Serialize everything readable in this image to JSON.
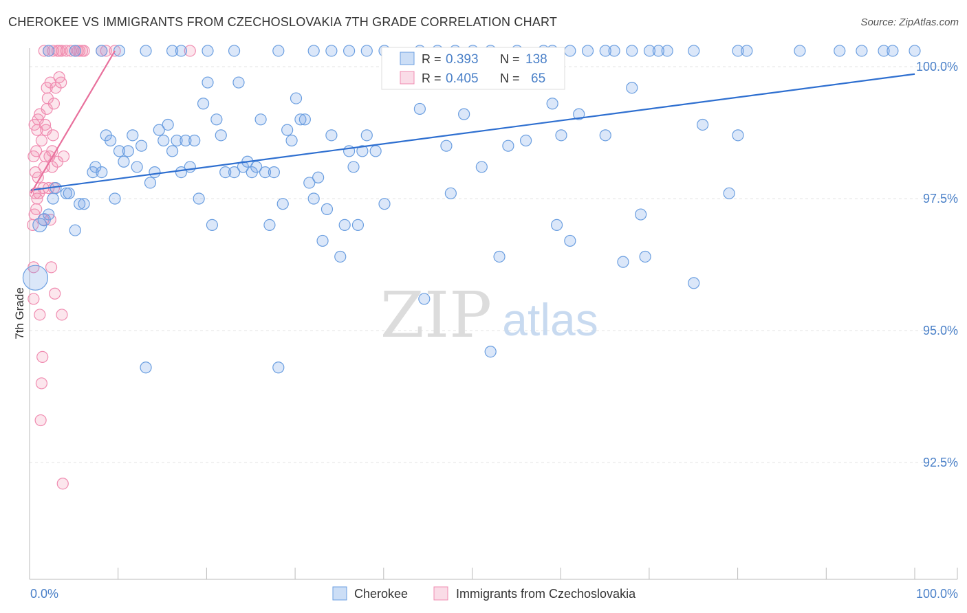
{
  "header": {
    "title": "CHEROKEE VS IMMIGRANTS FROM CZECHOSLOVAKIA 7TH GRADE CORRELATION CHART",
    "source": "Source: ZipAtlas.com"
  },
  "watermark": {
    "zip": "ZIP",
    "atlas": "atlas"
  },
  "colors": {
    "blue": "#6a9ee0",
    "blue_fill": "rgba(110,160,230,0.25)",
    "blue_line": "#2e6fd0",
    "pink": "#f08bb0",
    "pink_fill": "rgba(240,140,175,0.22)",
    "pink_line": "#e8709c",
    "tick_label": "#4a80c8",
    "grid": "#e3e3e3"
  },
  "chart_data": {
    "type": "scatter",
    "title": "CHEROKEE VS IMMIGRANTS FROM CZECHOSLOVAKIA 7TH GRADE CORRELATION CHART",
    "xlabel": "",
    "ylabel": "7th Grade",
    "xlim": [
      0,
      100
    ],
    "ylim": [
      90.0,
      100.4
    ],
    "x_tick_labels": {
      "left": "0.0%",
      "right": "100.0%"
    },
    "y_ticks": [
      {
        "value": 100.0,
        "label": "100.0%"
      },
      {
        "value": 97.5,
        "label": "97.5%"
      },
      {
        "value": 95.0,
        "label": "95.0%"
      },
      {
        "value": 92.5,
        "label": "92.5%"
      }
    ],
    "legend": {
      "position": "top-center",
      "rows": [
        {
          "r_label": "R =",
          "r_value": "0.393",
          "n_label": "N =",
          "n_value": "138"
        },
        {
          "r_label": "R =",
          "r_value": "0.405",
          "n_label": "N =",
          "n_value": "65"
        }
      ]
    },
    "bottom_legend": [
      "Cherokee",
      "Immigrants from Czechoslovakia"
    ],
    "series": [
      {
        "name": "Cherokee",
        "color": "#6a9ee0",
        "trend": {
          "x": [
            0,
            100
          ],
          "y": [
            97.66,
            99.86
          ]
        },
        "points": [
          [
            0.5,
            96.0,
            18
          ],
          [
            1,
            97.0,
            10
          ],
          [
            1.5,
            97.1,
            9
          ],
          [
            2,
            97.2,
            8
          ],
          [
            2.5,
            97.5,
            8
          ],
          [
            2.8,
            97.7,
            8
          ],
          [
            4,
            97.6,
            8
          ],
          [
            4.3,
            97.6,
            8
          ],
          [
            5,
            96.9,
            8
          ],
          [
            5.5,
            97.4,
            8
          ],
          [
            6,
            97.4,
            8
          ],
          [
            7,
            98.0,
            8
          ],
          [
            7.3,
            98.1,
            8
          ],
          [
            8,
            98.0,
            8
          ],
          [
            8.5,
            98.7,
            8
          ],
          [
            9,
            98.6,
            8
          ],
          [
            9.5,
            97.5,
            8
          ],
          [
            10,
            98.4,
            8
          ],
          [
            10.5,
            98.2,
            8
          ],
          [
            11,
            98.4,
            8
          ],
          [
            11.5,
            98.7,
            8
          ],
          [
            12,
            98.1,
            8
          ],
          [
            12.5,
            98.5,
            8
          ],
          [
            13,
            94.3,
            8
          ],
          [
            13.5,
            97.8,
            8
          ],
          [
            14,
            98.0,
            8
          ],
          [
            14.5,
            98.8,
            8
          ],
          [
            15,
            98.6,
            8
          ],
          [
            15.5,
            98.9,
            8
          ],
          [
            16,
            98.4,
            8
          ],
          [
            16.5,
            98.6,
            8
          ],
          [
            17,
            98.0,
            8
          ],
          [
            17.5,
            98.6,
            8
          ],
          [
            18,
            98.1,
            8
          ],
          [
            18.5,
            98.6,
            8
          ],
          [
            19,
            97.5,
            8
          ],
          [
            19.5,
            99.3,
            8
          ],
          [
            20,
            99.7,
            8
          ],
          [
            20.5,
            97.0,
            8
          ],
          [
            21,
            99.0,
            8
          ],
          [
            21.5,
            98.7,
            8
          ],
          [
            22,
            98.0,
            8
          ],
          [
            23,
            98.0,
            8
          ],
          [
            23.5,
            99.7,
            8
          ],
          [
            24,
            98.1,
            8
          ],
          [
            24.5,
            98.2,
            8
          ],
          [
            25,
            98.0,
            8
          ],
          [
            25.5,
            98.1,
            8
          ],
          [
            26,
            99.0,
            8
          ],
          [
            26.5,
            98.0,
            8
          ],
          [
            27,
            97.0,
            8
          ],
          [
            27.5,
            98.0,
            8
          ],
          [
            28,
            94.3,
            8
          ],
          [
            28.5,
            97.4,
            8
          ],
          [
            29,
            98.8,
            8
          ],
          [
            29.5,
            98.6,
            8
          ],
          [
            30,
            99.4,
            8
          ],
          [
            30.5,
            99.0,
            8
          ],
          [
            31,
            99.0,
            8
          ],
          [
            31.5,
            97.8,
            8
          ],
          [
            32,
            97.5,
            8
          ],
          [
            32.5,
            97.9,
            8
          ],
          [
            33,
            96.7,
            8
          ],
          [
            33.5,
            97.3,
            8
          ],
          [
            34,
            98.7,
            8
          ],
          [
            35,
            96.4,
            8
          ],
          [
            35.5,
            97.0,
            8
          ],
          [
            36,
            98.4,
            8
          ],
          [
            36.5,
            98.1,
            8
          ],
          [
            37,
            97.0,
            8
          ],
          [
            37.5,
            98.4,
            8
          ],
          [
            38,
            98.7,
            8
          ],
          [
            39,
            98.4,
            8
          ],
          [
            40,
            97.4,
            8
          ],
          [
            44,
            99.2,
            8
          ],
          [
            44.5,
            95.6,
            8
          ],
          [
            47,
            98.5,
            8
          ],
          [
            47.5,
            97.6,
            8
          ],
          [
            49,
            99.1,
            8
          ],
          [
            51,
            98.1,
            8
          ],
          [
            52,
            94.6,
            8
          ],
          [
            53,
            96.4,
            8
          ],
          [
            54,
            98.5,
            8
          ],
          [
            56,
            98.6,
            8
          ],
          [
            59,
            99.3,
            8
          ],
          [
            59.5,
            97.0,
            8
          ],
          [
            60,
            98.7,
            8
          ],
          [
            61,
            96.7,
            8
          ],
          [
            62,
            99.1,
            8
          ],
          [
            65,
            98.7,
            8
          ],
          [
            67,
            96.3,
            8
          ],
          [
            68,
            99.6,
            8
          ],
          [
            69,
            97.2,
            8
          ],
          [
            69.5,
            96.4,
            8
          ],
          [
            75,
            95.9,
            8
          ],
          [
            76,
            98.9,
            8
          ],
          [
            79,
            97.6,
            8
          ],
          [
            80,
            98.7,
            8
          ],
          [
            2,
            100.3,
            8
          ],
          [
            5,
            100.3,
            8
          ],
          [
            8,
            100.3,
            8
          ],
          [
            10,
            100.3,
            8
          ],
          [
            13,
            100.3,
            8
          ],
          [
            16,
            100.3,
            8
          ],
          [
            17,
            100.3,
            8
          ],
          [
            20,
            100.3,
            8
          ],
          [
            23,
            100.3,
            8
          ],
          [
            28,
            100.3,
            8
          ],
          [
            32,
            100.3,
            8
          ],
          [
            34,
            100.3,
            8
          ],
          [
            36,
            100.3,
            8
          ],
          [
            38,
            100.3,
            8
          ],
          [
            40,
            100.3,
            8
          ],
          [
            44,
            100.3,
            8
          ],
          [
            46,
            100.3,
            8
          ],
          [
            48,
            100.3,
            8
          ],
          [
            50,
            100.3,
            8
          ],
          [
            52,
            100.3,
            8
          ],
          [
            55,
            100.3,
            8
          ],
          [
            58,
            100.3,
            8
          ],
          [
            59,
            100.3,
            8
          ],
          [
            61,
            100.3,
            8
          ],
          [
            63,
            100.3,
            8
          ],
          [
            65,
            100.3,
            8
          ],
          [
            66,
            100.3,
            8
          ],
          [
            68,
            100.3,
            8
          ],
          [
            70,
            100.3,
            8
          ],
          [
            71,
            100.3,
            8
          ],
          [
            72,
            100.3,
            8
          ],
          [
            75,
            100.3,
            8
          ],
          [
            80,
            100.3,
            8
          ],
          [
            81,
            100.3,
            8
          ],
          [
            87,
            100.3,
            8
          ],
          [
            91.5,
            100.3,
            8
          ],
          [
            94,
            100.3,
            8
          ],
          [
            96.5,
            100.3,
            8
          ],
          [
            97.5,
            100.3,
            8
          ],
          [
            100,
            100.3,
            8
          ]
        ]
      },
      {
        "name": "Immigrants from Czechoslovakia",
        "color": "#f08bb0",
        "trend": {
          "x": [
            0,
            9.5
          ],
          "y": [
            97.6,
            100.3
          ]
        },
        "points": [
          [
            0.2,
            97.0,
            8
          ],
          [
            0.3,
            95.6,
            8
          ],
          [
            0.3,
            96.2,
            8
          ],
          [
            0.4,
            97.2,
            8
          ],
          [
            0.5,
            97.6,
            8
          ],
          [
            0.5,
            98.0,
            8
          ],
          [
            0.6,
            98.4,
            8
          ],
          [
            0.7,
            98.8,
            8
          ],
          [
            0.8,
            99.0,
            8
          ],
          [
            0.9,
            97.6,
            8
          ],
          [
            1,
            95.3,
            8
          ],
          [
            1.1,
            93.3,
            8
          ],
          [
            1.2,
            94.0,
            8
          ],
          [
            1.3,
            94.5,
            8
          ],
          [
            1.4,
            97.7,
            8
          ],
          [
            1.5,
            98.1,
            8
          ],
          [
            1.6,
            98.3,
            8
          ],
          [
            1.7,
            98.8,
            8
          ],
          [
            1.8,
            99.2,
            8
          ],
          [
            1.9,
            99.4,
            8
          ],
          [
            2,
            97.7,
            8
          ],
          [
            2.1,
            98.3,
            8
          ],
          [
            2.2,
            99.7,
            8
          ],
          [
            2.3,
            96.2,
            8
          ],
          [
            2.4,
            98.1,
            8
          ],
          [
            2.5,
            98.7,
            8
          ],
          [
            2.6,
            99.3,
            8
          ],
          [
            2.7,
            95.7,
            8
          ],
          [
            2.8,
            99.6,
            8
          ],
          [
            3,
            98.2,
            8
          ],
          [
            3.2,
            99.8,
            8
          ],
          [
            3.4,
            99.7,
            8
          ],
          [
            3.5,
            95.3,
            8
          ],
          [
            3.6,
            92.1,
            8
          ],
          [
            3.7,
            98.3,
            8
          ],
          [
            1.5,
            100.3,
            8
          ],
          [
            2,
            100.3,
            8
          ],
          [
            2.5,
            100.3,
            8
          ],
          [
            3,
            100.3,
            8
          ],
          [
            3.2,
            100.3,
            8
          ],
          [
            3.5,
            100.3,
            8
          ],
          [
            4,
            100.3,
            8
          ],
          [
            4.5,
            100.3,
            8
          ],
          [
            5,
            100.3,
            8
          ],
          [
            5.3,
            100.3,
            8
          ],
          [
            5.5,
            100.3,
            8
          ],
          [
            5.8,
            100.3,
            8
          ],
          [
            6,
            100.3,
            8
          ],
          [
            8,
            100.3,
            8
          ],
          [
            8.5,
            100.3,
            8
          ],
          [
            9.5,
            100.3,
            8
          ],
          [
            18,
            100.3,
            8
          ],
          [
            0.4,
            98.9,
            8
          ],
          [
            0.6,
            97.3,
            8
          ],
          [
            0.8,
            97.9,
            8
          ],
          [
            1.2,
            98.6,
            8
          ],
          [
            1.4,
            97.1,
            8
          ],
          [
            1.6,
            98.9,
            8
          ],
          [
            1.8,
            99.6,
            8
          ],
          [
            2.2,
            97.1,
            8
          ],
          [
            2.4,
            98.4,
            8
          ],
          [
            2.6,
            97.7,
            8
          ],
          [
            0.3,
            98.3,
            8
          ],
          [
            0.7,
            97.5,
            8
          ],
          [
            1.0,
            99.1,
            8
          ]
        ]
      }
    ]
  }
}
